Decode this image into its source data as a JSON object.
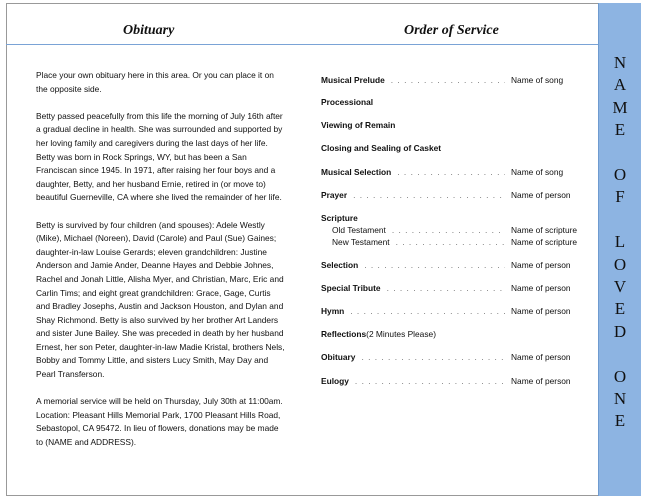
{
  "headers": {
    "left": "Obituary",
    "right": "Order of Service"
  },
  "sidebar_letters": [
    "N",
    "A",
    "M",
    "E",
    "",
    "O",
    "F",
    "",
    "L",
    "O",
    "V",
    "E",
    "D",
    "",
    "O",
    "N",
    "E"
  ],
  "obituary": [
    "Place your own obituary here in this area. Or you can place it on the opposite side.",
    "Betty passed peacefully from this life the morning of July 16th after a gradual decline in health.  She was surrounded and supported by her loving family and caregivers during the last days of her life.  Betty was born in Rock Springs, WY, but has been a San Franciscan since 1945.  In 1971, after raising her four boys and a daughter, Betty, and her husband Ernie, retired in (or move to) beautiful Guerneville, CA where she lived the remainder of her life.",
    "Betty is survived by four children (and spouses): Adele Westly (Mike), Michael (Noreen), David (Carole) and Paul (Sue) Gaines;  daughter-in-law Louise Gerards;  eleven grandchildren: Justine Anderson and Jamie Ander, Deanne Hayes and Debbie Johnes, Rachel and Jonah Little, Alisha Myer, and Christian, Marc, Eric and Carlin Tims;  and eight great grandchildren: Grace, Gage, Curtis and Bradley Josephs, Austin and Jackson Houston, and Dylan and Shay Richmond.  Betty is also survived by her brother Art Landers and sister June Bailey.  She was preceded in death by her husband Ernest, her son Peter, daughter-in-law Madie Kristal, brothers Nels, Bobby and Tommy Little, and sisters Lucy Smith, May Day and Pearl Transferson.",
    "A memorial service will be held on Thursday, July 30th at 11:00am.  Location:  Pleasant Hills Memorial Park, 1700 Pleasant Hills Road, Sebastopol, CA 95472.  In lieu of flowers, donations may be made to (NAME and ADDRESS)."
  ],
  "service": [
    {
      "label": "Musical Prelude",
      "value": "Name of song"
    },
    {
      "label": "Processional",
      "value": ""
    },
    {
      "label": "Viewing of Remain",
      "value": ""
    },
    {
      "label": "Closing and Sealing of Casket",
      "value": ""
    },
    {
      "label": "Musical Selection",
      "value": "Name of song"
    },
    {
      "label": "Prayer",
      "value": "Name of person"
    },
    {
      "label": "Scripture",
      "value": ""
    },
    {
      "label": "Selection",
      "value": "Name of person"
    },
    {
      "label": "Special Tribute",
      "value": "Name of person"
    },
    {
      "label": "Hymn",
      "value": "Name of person"
    },
    {
      "label": "Reflections",
      "note": " (2 Minutes Please)",
      "value": ""
    },
    {
      "label": "Obituary",
      "value": "Name of person"
    },
    {
      "label": "Eulogy",
      "value": "Name of person"
    }
  ],
  "scripture_sub": [
    {
      "label": "Old Testament",
      "value": "Name of scripture"
    },
    {
      "label": "New Testament",
      "value": "Name of scripture"
    }
  ],
  "colors": {
    "sidebar": "#8db4e2",
    "rule": "#7aa3d6"
  }
}
